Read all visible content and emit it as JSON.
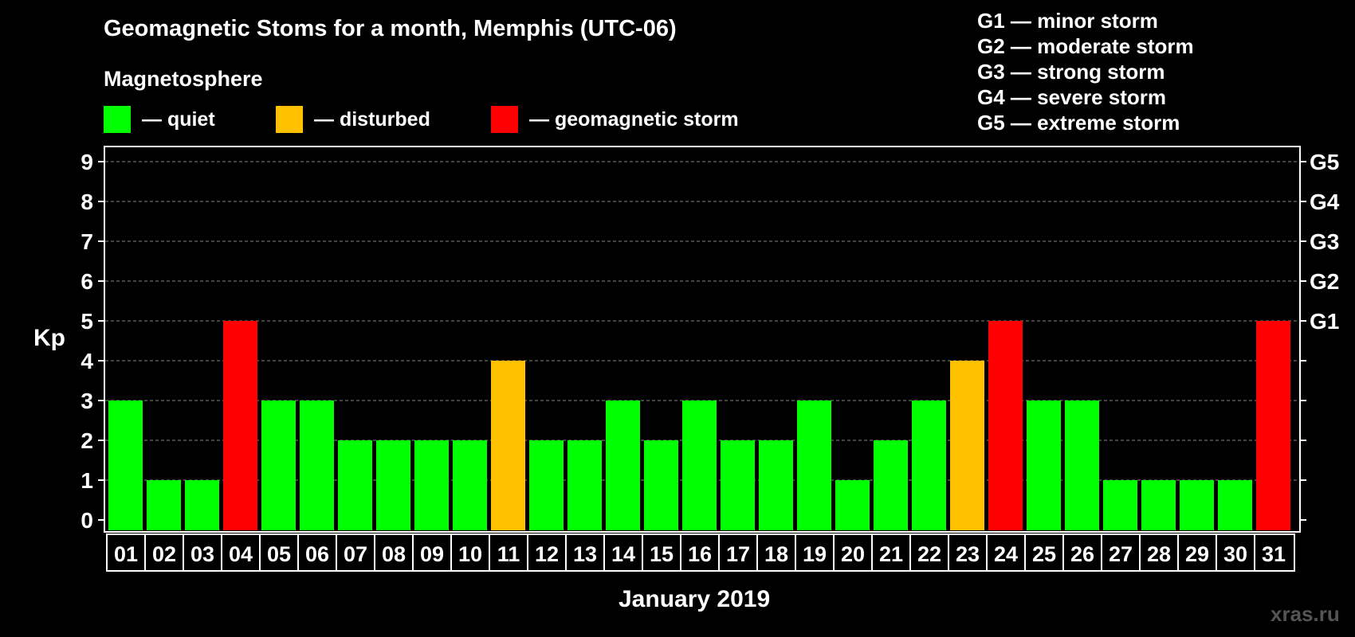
{
  "title": "Geomagnetic Stoms for a month, Memphis (UTC-06)",
  "magnetosphere_title": "Magnetosphere",
  "legend": {
    "quiet": "— quiet",
    "disturbed": "— disturbed",
    "storm": "— geomagnetic storm"
  },
  "g_legend": [
    "G1 — minor storm",
    "G2 — moderate storm",
    "G3 — strong storm",
    "G4 — severe storm",
    "G5 — extreme storm"
  ],
  "colors": {
    "quiet": "#00ff00",
    "disturbed": "#ffc000",
    "storm": "#ff0000",
    "background": "#000000",
    "axis": "#ffffff",
    "grid": "#888888"
  },
  "watermark": "xras.ru",
  "chart_data": {
    "type": "bar",
    "title": "Geomagnetic Stoms for a month, Memphis (UTC-06)",
    "xlabel": "January 2019",
    "ylabel": "Kp",
    "ylim": [
      0,
      9
    ],
    "y_ticks": [
      "0",
      "1",
      "2",
      "3",
      "4",
      "5",
      "6",
      "7",
      "8",
      "9"
    ],
    "right_ticks": [
      {
        "value": 5,
        "label": "G1"
      },
      {
        "value": 6,
        "label": "G2"
      },
      {
        "value": 7,
        "label": "G3"
      },
      {
        "value": 8,
        "label": "G4"
      },
      {
        "value": 9,
        "label": "G5"
      }
    ],
    "grid": true,
    "categories": [
      "01",
      "02",
      "03",
      "04",
      "05",
      "06",
      "07",
      "08",
      "09",
      "10",
      "11",
      "12",
      "13",
      "14",
      "15",
      "16",
      "17",
      "18",
      "19",
      "20",
      "21",
      "22",
      "23",
      "24",
      "25",
      "26",
      "27",
      "28",
      "29",
      "30",
      "31"
    ],
    "values": [
      3,
      1,
      1,
      5,
      3,
      3,
      2,
      2,
      2,
      2,
      4,
      2,
      2,
      3,
      2,
      3,
      2,
      2,
      3,
      1,
      2,
      3,
      4,
      5,
      3,
      3,
      1,
      1,
      1,
      1,
      5
    ],
    "levels": [
      "quiet",
      "quiet",
      "quiet",
      "storm",
      "quiet",
      "quiet",
      "quiet",
      "quiet",
      "quiet",
      "quiet",
      "disturbed",
      "quiet",
      "quiet",
      "quiet",
      "quiet",
      "quiet",
      "quiet",
      "quiet",
      "quiet",
      "quiet",
      "quiet",
      "quiet",
      "disturbed",
      "storm",
      "quiet",
      "quiet",
      "quiet",
      "quiet",
      "quiet",
      "quiet",
      "storm"
    ]
  }
}
